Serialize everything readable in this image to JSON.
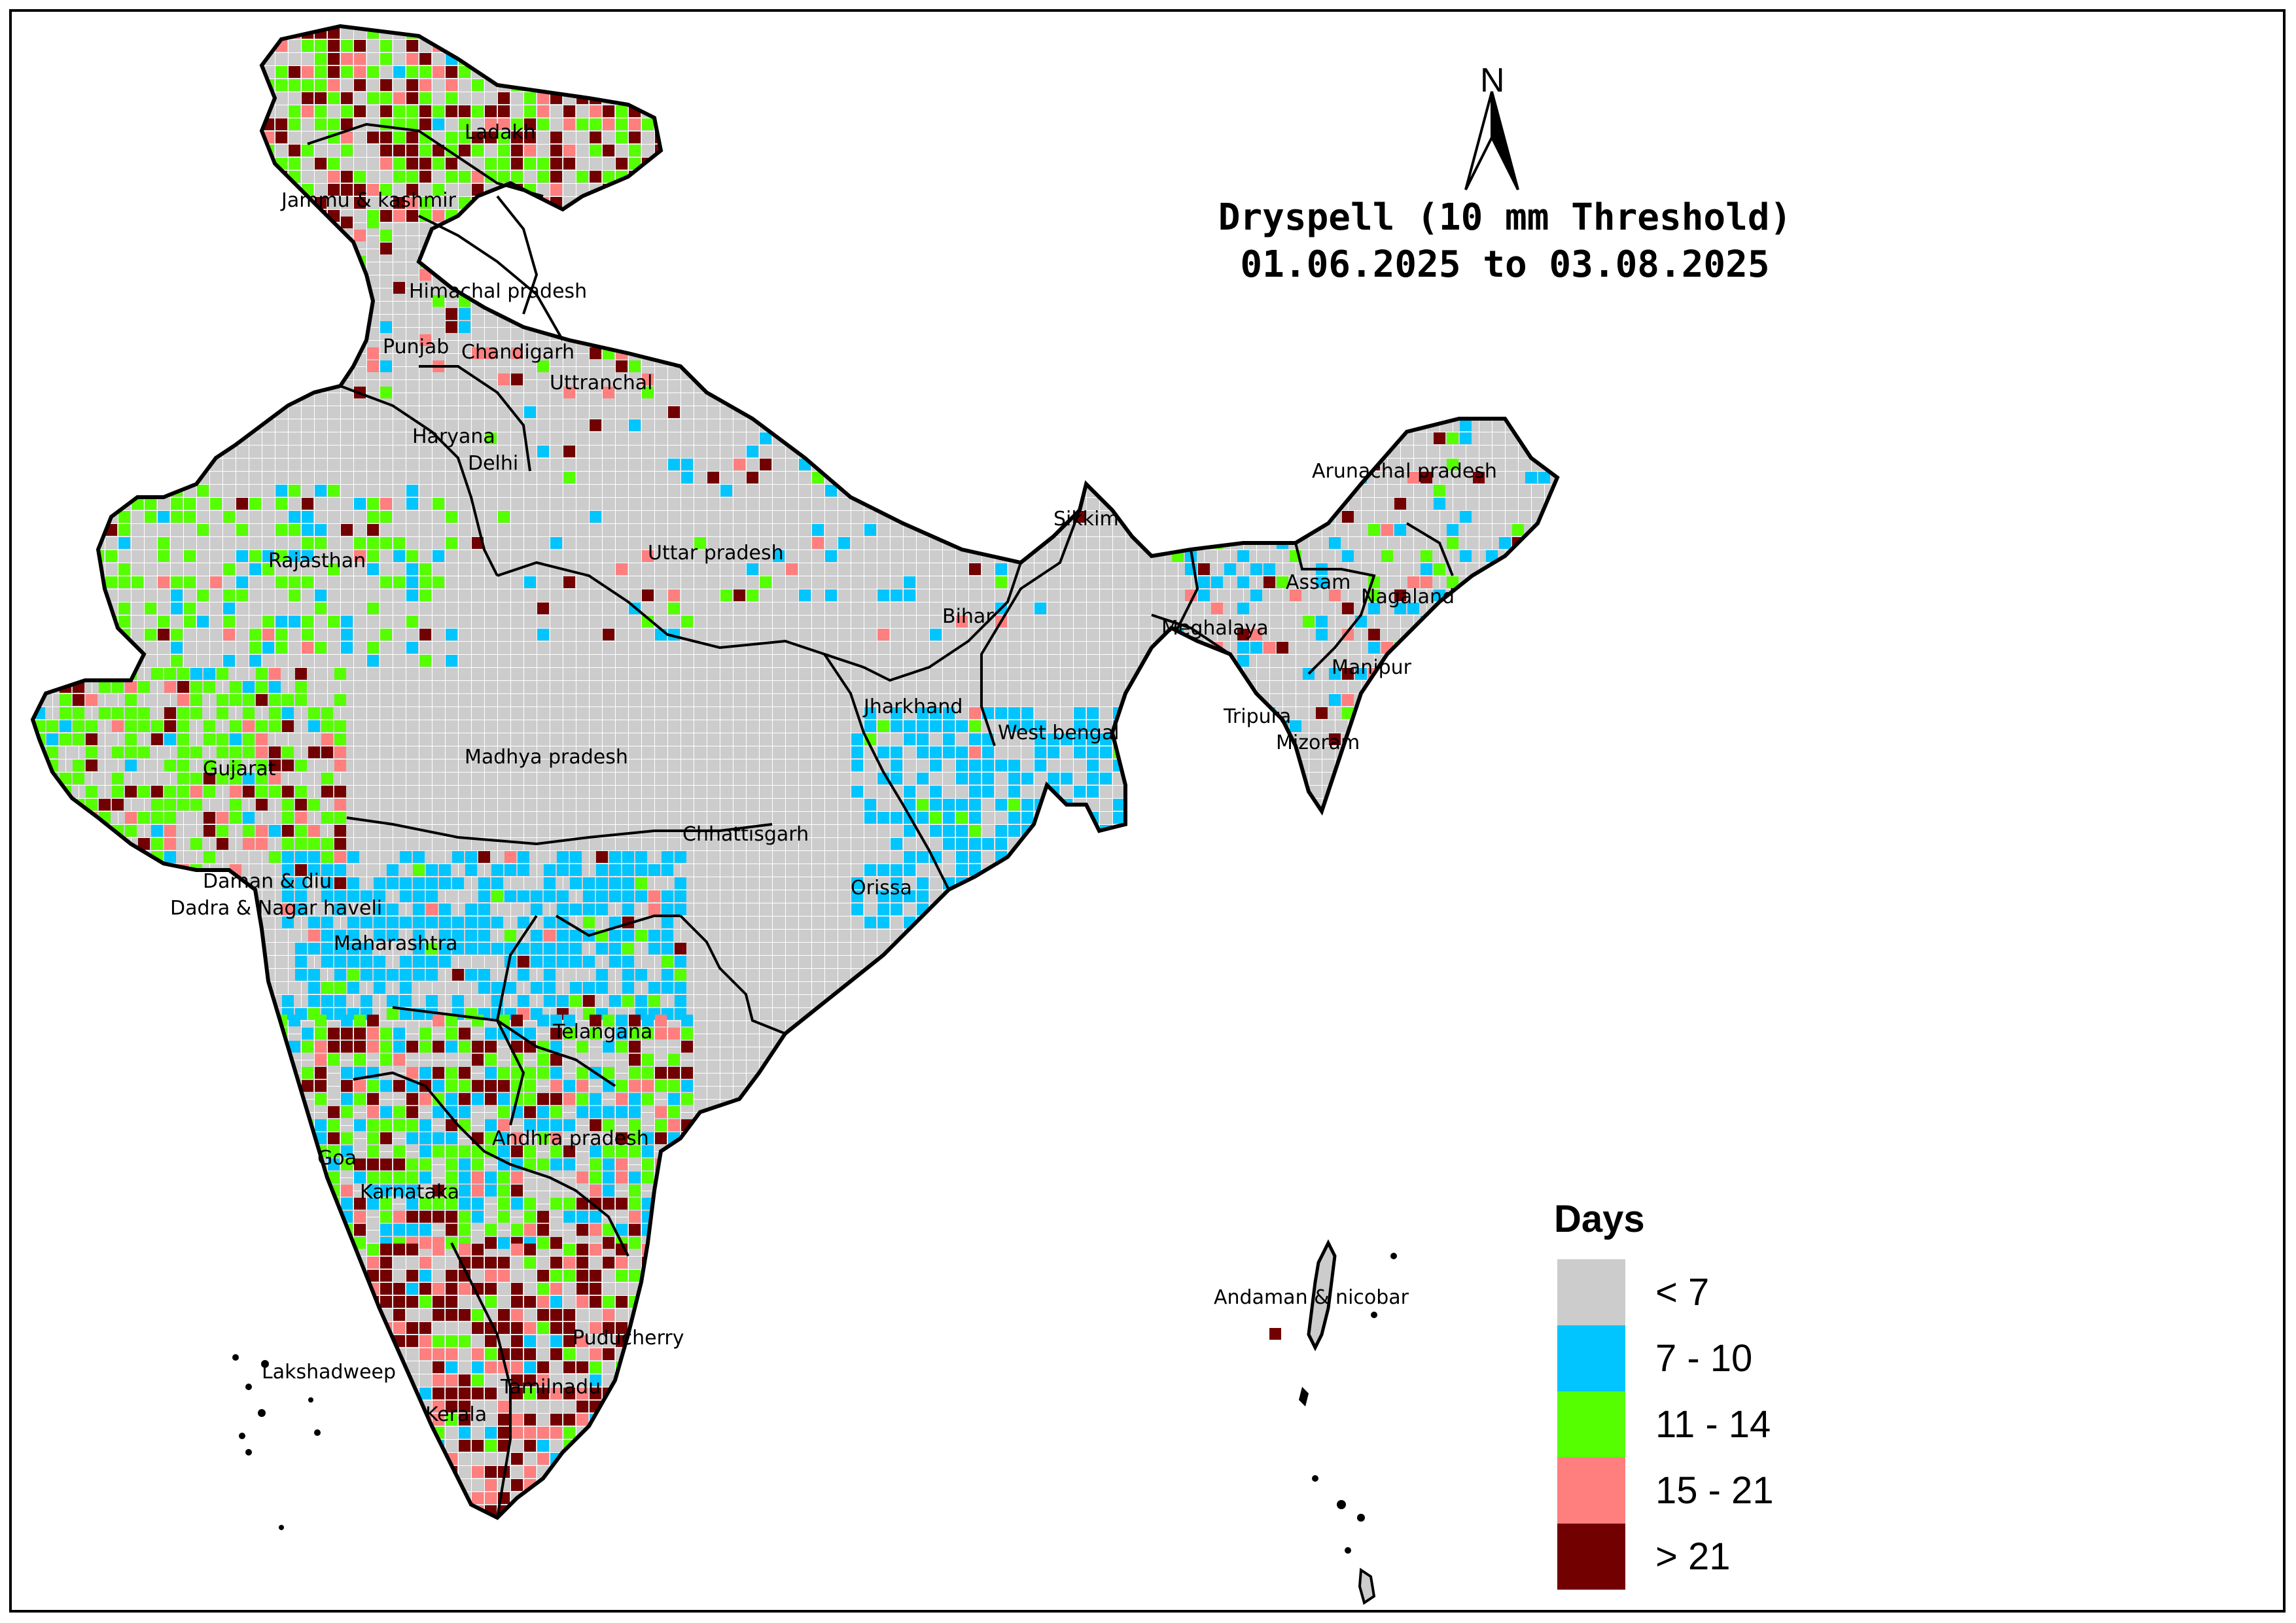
{
  "title": {
    "line1": "Dryspell (10 mm Threshold)",
    "line2": "01.06.2025 to 03.08.2025"
  },
  "north_arrow": {
    "label": "N"
  },
  "legend": {
    "title": "Days",
    "classes": [
      {
        "label": "< 7",
        "color": "#cccccc"
      },
      {
        "label": "7 - 10",
        "color": "#00c5ff"
      },
      {
        "label": "11 - 14",
        "color": "#55ff00"
      },
      {
        "label": "15 - 21",
        "color": "#ff7f7f"
      },
      {
        "label": "> 21",
        "color": "#730000"
      }
    ]
  },
  "regions": [
    "Ladakh",
    "Jammu & kashmir",
    "Himachal pradesh",
    "Punjab",
    "Chandigarh",
    "Uttranchal",
    "Haryana",
    "Delhi",
    "Rajasthan",
    "Uttar pradesh",
    "Sikkim",
    "Arunachal pradesh",
    "Assam",
    "Nagaland",
    "Meghalaya",
    "Manipur",
    "Tripura",
    "Mizoram",
    "Bihar",
    "Jharkhand",
    "West bengal",
    "Gujarat",
    "Madhya pradesh",
    "Chhattisgarh",
    "Orissa",
    "Daman & diu",
    "Dadra & Nagar haveli",
    "Maharashtra",
    "Telangana",
    "Andhra pradesh",
    "Goa",
    "Karnataka",
    "Puducherry",
    "Lakshadweep",
    "Tamilnadu",
    "Kerala",
    "Andaman & nicobar"
  ]
}
